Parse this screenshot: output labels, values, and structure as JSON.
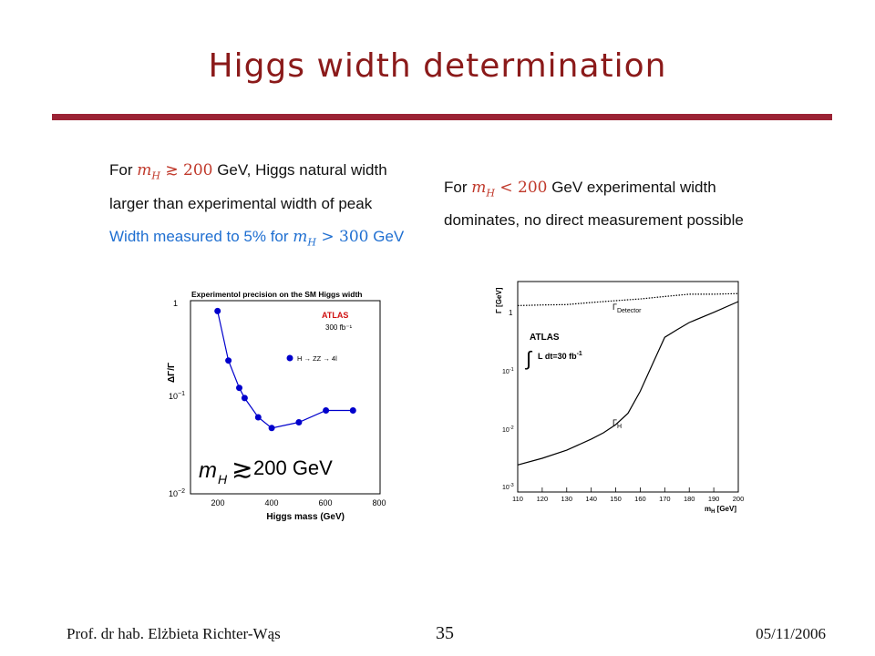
{
  "slide": {
    "title": "Higgs width determination",
    "left_text": {
      "line1_a": "For ",
      "line1_m": "m",
      "line1_sub": "H",
      "line1_rel": " ≳ ",
      "line1_num": "200",
      "line1_b": " GeV, Higgs natural width",
      "line2": "larger than experimental width of peak",
      "line3_a": "Width measured to 5% for ",
      "line3_m": "m",
      "line3_sub": "H",
      "line3_rel": " > ",
      "line3_num": "300",
      "line3_b": " GeV"
    },
    "right_text": {
      "line1_a": "For ",
      "line1_m": "m",
      "line1_sub": "H",
      "line1_rel": " < ",
      "line1_num": "200",
      "line1_b": " GeV experimental width",
      "line2": "dominates, no direct measurement possible"
    },
    "footer": {
      "author": "Prof. dr hab. Elżbieta Richter-Wąs",
      "page": "35",
      "date": "05/11/2006"
    }
  },
  "colors": {
    "title": "#8b1a1a",
    "rule": "#9b2335",
    "highlight": "#c0392b",
    "blue": "#1f6fd1",
    "series": "#0000cc"
  },
  "chart_data": [
    {
      "type": "line",
      "title": "Experimentol precision on the SM Higgs width",
      "experiment": "ATLAS",
      "luminosity": "300 fb⁻¹",
      "legend": "H → ZZ → 4l",
      "legend_position": "right",
      "annotation": {
        "m": "m",
        "sub": "H",
        "rel": "≳",
        "rest": "200 GeV"
      },
      "xlabel": "Higgs mass (GeV)",
      "ylabel": "ΔΓ/Γ",
      "xlim": [
        100,
        800
      ],
      "ylim": [
        0.01,
        1
      ],
      "yscale": "log",
      "x_ticks": [
        "200",
        "400",
        "600",
        "800"
      ],
      "y_tick_1": "1",
      "y_tick_2_base": "10",
      "y_tick_2_exp": "−1",
      "y_tick_3_base": "10",
      "y_tick_3_exp": "−2",
      "series": [
        {
          "name": "H → ZZ → 4l",
          "x": [
            200,
            240,
            280,
            300,
            350,
            400,
            500,
            600,
            700
          ],
          "y": [
            0.78,
            0.24,
            0.125,
            0.098,
            0.062,
            0.048,
            0.055,
            0.073,
            0.073
          ]
        }
      ]
    },
    {
      "type": "line",
      "experiment": "ATLAS",
      "lumi_label": "L dt=30 fb",
      "lumi_exp": "-1",
      "xlabel": "m",
      "xlabel_sub": "H",
      "xlabel_unit": " [GeV]",
      "ylabel": "Γ [GeV]",
      "xlim": [
        110,
        200
      ],
      "ylim": [
        0.001,
        3
      ],
      "yscale": "log",
      "x_ticks": [
        "110",
        "120",
        "130",
        "140",
        "150",
        "160",
        "170",
        "180",
        "190",
        "200"
      ],
      "y_tick_1": "1",
      "y_tick_2": "10",
      "y_tick_2_exp": "-1",
      "y_tick_3": "10",
      "y_tick_3_exp": "-2",
      "y_tick_4": "10",
      "y_tick_4_exp": "-3",
      "series": [
        {
          "name": "Γ",
          "name_sub": "Detector",
          "x": [
            110,
            120,
            130,
            140,
            150,
            160,
            170,
            180,
            190,
            200
          ],
          "y": [
            1.2,
            1.23,
            1.25,
            1.35,
            1.45,
            1.55,
            1.7,
            1.85,
            1.85,
            1.9
          ]
        },
        {
          "name": "Γ",
          "name_sub": "H",
          "x": [
            110,
            120,
            130,
            140,
            145,
            150,
            155,
            160,
            165,
            170,
            175,
            180,
            190,
            200
          ],
          "y": [
            0.0028,
            0.0036,
            0.0049,
            0.0075,
            0.0095,
            0.013,
            0.02,
            0.046,
            0.13,
            0.36,
            0.48,
            0.63,
            0.93,
            1.4
          ]
        }
      ]
    }
  ]
}
